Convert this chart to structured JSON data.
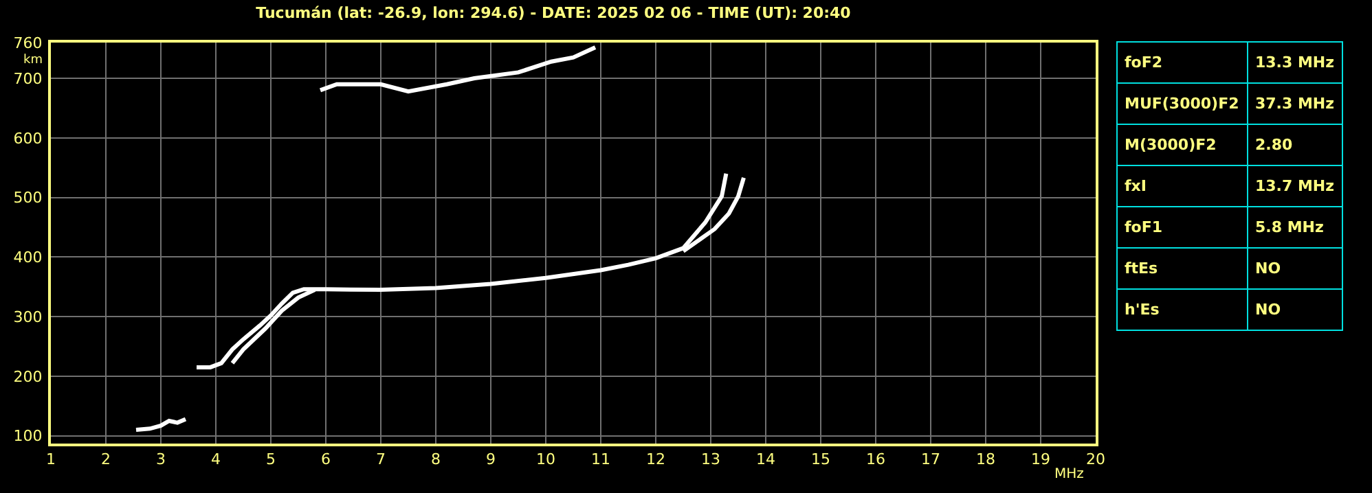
{
  "chart_data": [
    {
      "type": "line",
      "title": "Tucumán (lat: -26.9, lon: 294.6) - DATE: 2025 02 06 - TIME (UT): 20:40",
      "xlabel": "MHz",
      "ylabel": "km",
      "xlim": [
        1,
        20
      ],
      "xticks": [
        1,
        2,
        3,
        4,
        5,
        6,
        7,
        8,
        9,
        10,
        11,
        12,
        13,
        14,
        15,
        16,
        17,
        18,
        19,
        20
      ],
      "ylim": [
        87,
        760
      ],
      "yticks": [
        100,
        200,
        300,
        400,
        500,
        600,
        700,
        760
      ],
      "grid": true,
      "series": [
        {
          "color": "#ffffff",
          "x": [
            2.55,
            2.8,
            3.0,
            3.15,
            3.3,
            3.45
          ],
          "values": [
            110,
            112,
            117,
            125,
            122,
            128
          ]
        },
        {
          "color": "#ffffff",
          "x": [
            3.65,
            3.9,
            4.1,
            4.3,
            4.5,
            4.8,
            5.0,
            5.2,
            5.4,
            5.6,
            6,
            7,
            8,
            9,
            10,
            11,
            11.5,
            12,
            12.5,
            12.9,
            13.2,
            13.28
          ],
          "values": [
            215,
            215,
            222,
            245,
            262,
            285,
            302,
            322,
            340,
            346,
            346,
            345,
            348,
            355,
            365,
            378,
            387,
            398,
            415,
            458,
            502,
            540
          ]
        },
        {
          "color": "#ffffff",
          "x": [
            4.3,
            4.5,
            4.9,
            5.2,
            5.5,
            5.8
          ],
          "values": [
            222,
            245,
            280,
            310,
            332,
            345
          ]
        },
        {
          "color": "#ffffff",
          "x": [
            12.5,
            13.07,
            13.33,
            13.5,
            13.6
          ],
          "values": [
            410,
            447,
            473,
            502,
            533
          ]
        },
        {
          "color": "#ffffff",
          "x": [
            5.9,
            6.2,
            7,
            7.5,
            8.2,
            8.7,
            9.5,
            10.1,
            10.5,
            10.9
          ],
          "values": [
            680,
            690,
            690,
            678,
            690,
            700,
            710,
            728,
            735,
            752
          ]
        }
      ]
    },
    {
      "type": "other",
      "cell_labels": [
        [
          "foF2",
          "13.3 MHz"
        ],
        [
          "MUF(3000)F2",
          "37.3 MHz"
        ],
        [
          "M(3000)F2",
          "2.80"
        ],
        [
          "fxI",
          "13.7 MHz"
        ],
        [
          "foF1",
          "5.8 MHz"
        ],
        [
          "ftEs",
          "NO"
        ],
        [
          "h'Es",
          "NO"
        ]
      ]
    }
  ]
}
